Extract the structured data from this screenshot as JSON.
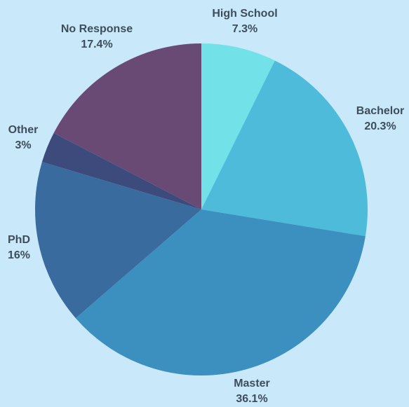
{
  "chart_data": {
    "type": "pie",
    "title": "",
    "start_angle_deg": 0,
    "direction": "clockwise",
    "slices": [
      {
        "label": "High School",
        "value": 7.3,
        "value_label": "7.3%",
        "color": "#72e2e8"
      },
      {
        "label": "Bachelor",
        "value": 20.3,
        "value_label": "20.3%",
        "color": "#4dbbd9"
      },
      {
        "label": "Master",
        "value": 36.1,
        "value_label": "36.1%",
        "color": "#3b90c0"
      },
      {
        "label": "PhD",
        "value": 16,
        "value_label": "16%",
        "color": "#3a6b9e"
      },
      {
        "label": "Other",
        "value": 3,
        "value_label": "3%",
        "color": "#3c4a7c"
      },
      {
        "label": "No Response",
        "value": 17.4,
        "value_label": "17.4%",
        "color": "#684a74"
      }
    ]
  }
}
